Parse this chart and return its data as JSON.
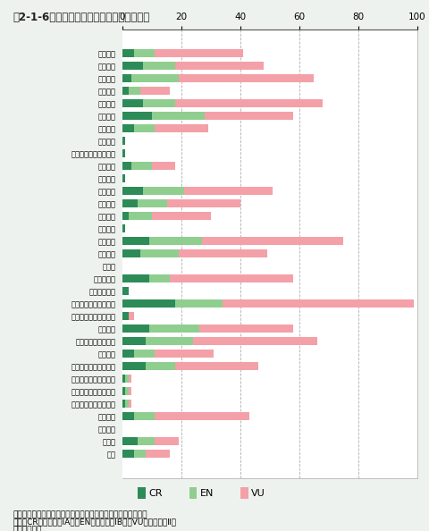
{
  "title": "図2-1-6　絶滅危惧種の減少要因（昆虫類）",
  "categories": [
    "森林伐採",
    "湖沼開発",
    "河川開発",
    "海岸開発",
    "湿地開発",
    "ほ場整備",
    "草地開発",
    "石灰採掘",
    "洞窟の消失や環境悪化",
    "ゴルフ場",
    "スキー場",
    "土地造成",
    "道路建設",
    "ダム建設",
    "交通事故",
    "水質汚濁",
    "農薬汚染",
    "感染症",
    "捕獲・狩猟",
    "人の踏み付け",
    "捕食（外来種による）",
    "捕食（在来種による）",
    "管理放棄",
    "遷移進行・植生変化",
    "自然災害",
    "競争（外来種による）",
    "競争（在来種による）",
    "交雑（外来種による）",
    "交雑（在来種による）",
    "局所分布",
    "近親交配",
    "その他",
    "不明"
  ],
  "CR": [
    4,
    7,
    3,
    2,
    7,
    10,
    4,
    1,
    1,
    3,
    1,
    7,
    5,
    2,
    1,
    9,
    6,
    0,
    9,
    2,
    18,
    2,
    9,
    8,
    4,
    8,
    1,
    1,
    1,
    4,
    0,
    5,
    4
  ],
  "EN": [
    7,
    11,
    16,
    4,
    11,
    18,
    7,
    0,
    0,
    7,
    0,
    14,
    10,
    8,
    0,
    18,
    13,
    0,
    7,
    0,
    16,
    0,
    17,
    16,
    7,
    10,
    1,
    1,
    1,
    7,
    0,
    6,
    4
  ],
  "VU": [
    30,
    30,
    46,
    10,
    50,
    30,
    18,
    0,
    0,
    8,
    0,
    30,
    25,
    20,
    0,
    48,
    30,
    0,
    42,
    0,
    65,
    2,
    32,
    42,
    20,
    28,
    1,
    1,
    1,
    32,
    0,
    8,
    8
  ],
  "colors": {
    "CR": "#2d8b57",
    "EN": "#8fce8f",
    "VU": "#f4a0a8"
  },
  "xlim": [
    0,
    100
  ],
  "xticks": [
    0,
    20,
    40,
    60,
    80,
    100
  ],
  "background_color": "#eef2ee",
  "chart_bg": "#ffffff",
  "note1": "注１：横軸は種数。１種で複数の減少要因に該当する種がある",
  "note2": "　２：CR：絶滅危惧ⅠA類、EN：絶滅危惧ⅠB類、VU：絶滅危惧Ⅱ類",
  "note3": "資料：環境省"
}
